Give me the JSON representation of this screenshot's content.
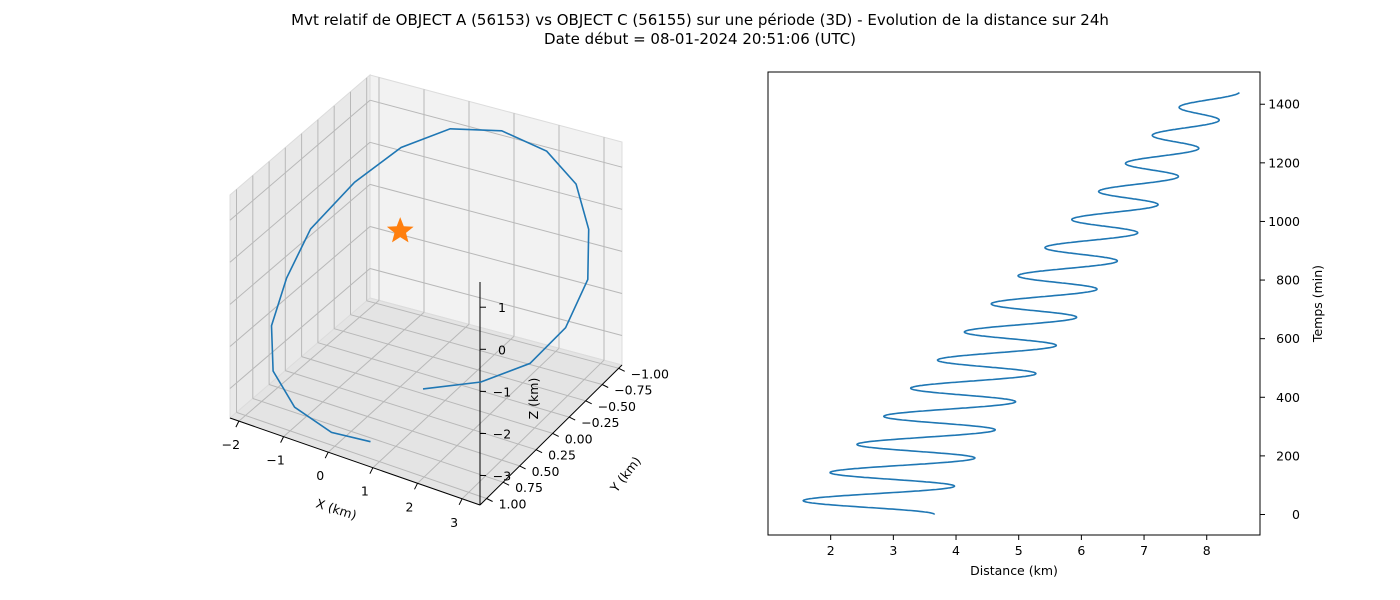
{
  "title": {
    "line1": "Mvt relatif de OBJECT A (56153) vs OBJECT C (56155) sur une période (3D) - Evolution de la distance sur 24h",
    "line2": "Date début = 08-01-2024 20:51:06 (UTC)"
  },
  "colors": {
    "series": "#1f77b4",
    "marker": "#ff7f0e",
    "grid": "#b0b0b0",
    "pane": "#f2f2f2"
  },
  "chart_data": [
    {
      "type": "line",
      "projection": "3d",
      "xlabel": "X (km)",
      "ylabel": "Y (km)",
      "zlabel": "Z (km)",
      "xlim": [
        -2.2,
        3.4
      ],
      "ylim": [
        -1.05,
        1.1
      ],
      "zlim": [
        -3.7,
        1.6
      ],
      "x_ticks": [
        "−2",
        "−1",
        "0",
        "1",
        "2",
        "3"
      ],
      "y_ticks": [
        "−1.00",
        "−0.75",
        "−0.50",
        "−0.25",
        "0.00",
        "0.25",
        "0.50",
        "0.75",
        "1.00"
      ],
      "z_ticks": [
        "1",
        "0",
        "−1",
        "−2",
        "−3"
      ],
      "grid": true,
      "series": [
        {
          "points": [
            [
              0.8,
              0.2,
              -3.2
            ],
            [
              1.8,
              0.0,
              -3.0
            ],
            [
              2.6,
              -0.2,
              -2.6
            ],
            [
              3.1,
              -0.4,
              -1.9
            ],
            [
              3.3,
              -0.6,
              -1.0
            ],
            [
              3.1,
              -0.75,
              -0.1
            ],
            [
              2.6,
              -0.9,
              0.6
            ],
            [
              1.8,
              -1.0,
              1.0
            ],
            [
              0.8,
              -1.0,
              1.2
            ],
            [
              -0.2,
              -0.9,
              1.1
            ],
            [
              -1.0,
              -0.7,
              0.7
            ],
            [
              -1.6,
              -0.4,
              0.1
            ],
            [
              -2.0,
              0.0,
              -0.6
            ],
            [
              -2.1,
              0.3,
              -1.4
            ],
            [
              -2.0,
              0.6,
              -2.1
            ],
            [
              -1.6,
              0.85,
              -2.7
            ],
            [
              -0.9,
              1.0,
              -3.1
            ],
            [
              0.0,
              1.05,
              -3.3
            ],
            [
              0.8,
              1.0,
              -3.3
            ]
          ]
        }
      ],
      "marker": {
        "symbol": "star",
        "point": [
          0,
          0,
          0
        ]
      }
    },
    {
      "type": "line",
      "xlabel": "Distance (km)",
      "ylabel": "Temps (min)",
      "xlim": [
        1.0,
        8.85
      ],
      "ylim": [
        -70,
        1510
      ],
      "x_ticks": [
        2,
        3,
        4,
        5,
        6,
        7,
        8
      ],
      "y_ticks": [
        0,
        200,
        400,
        600,
        800,
        1000,
        1200,
        1400
      ],
      "y_axis_position": "right",
      "series": [
        {
          "t_start": 0,
          "t_end": 1440,
          "period_min": 96,
          "center_start": 2.5,
          "center_end": 8.15,
          "amplitude_start": 1.15,
          "amplitude_end": 0.37
        }
      ]
    }
  ]
}
